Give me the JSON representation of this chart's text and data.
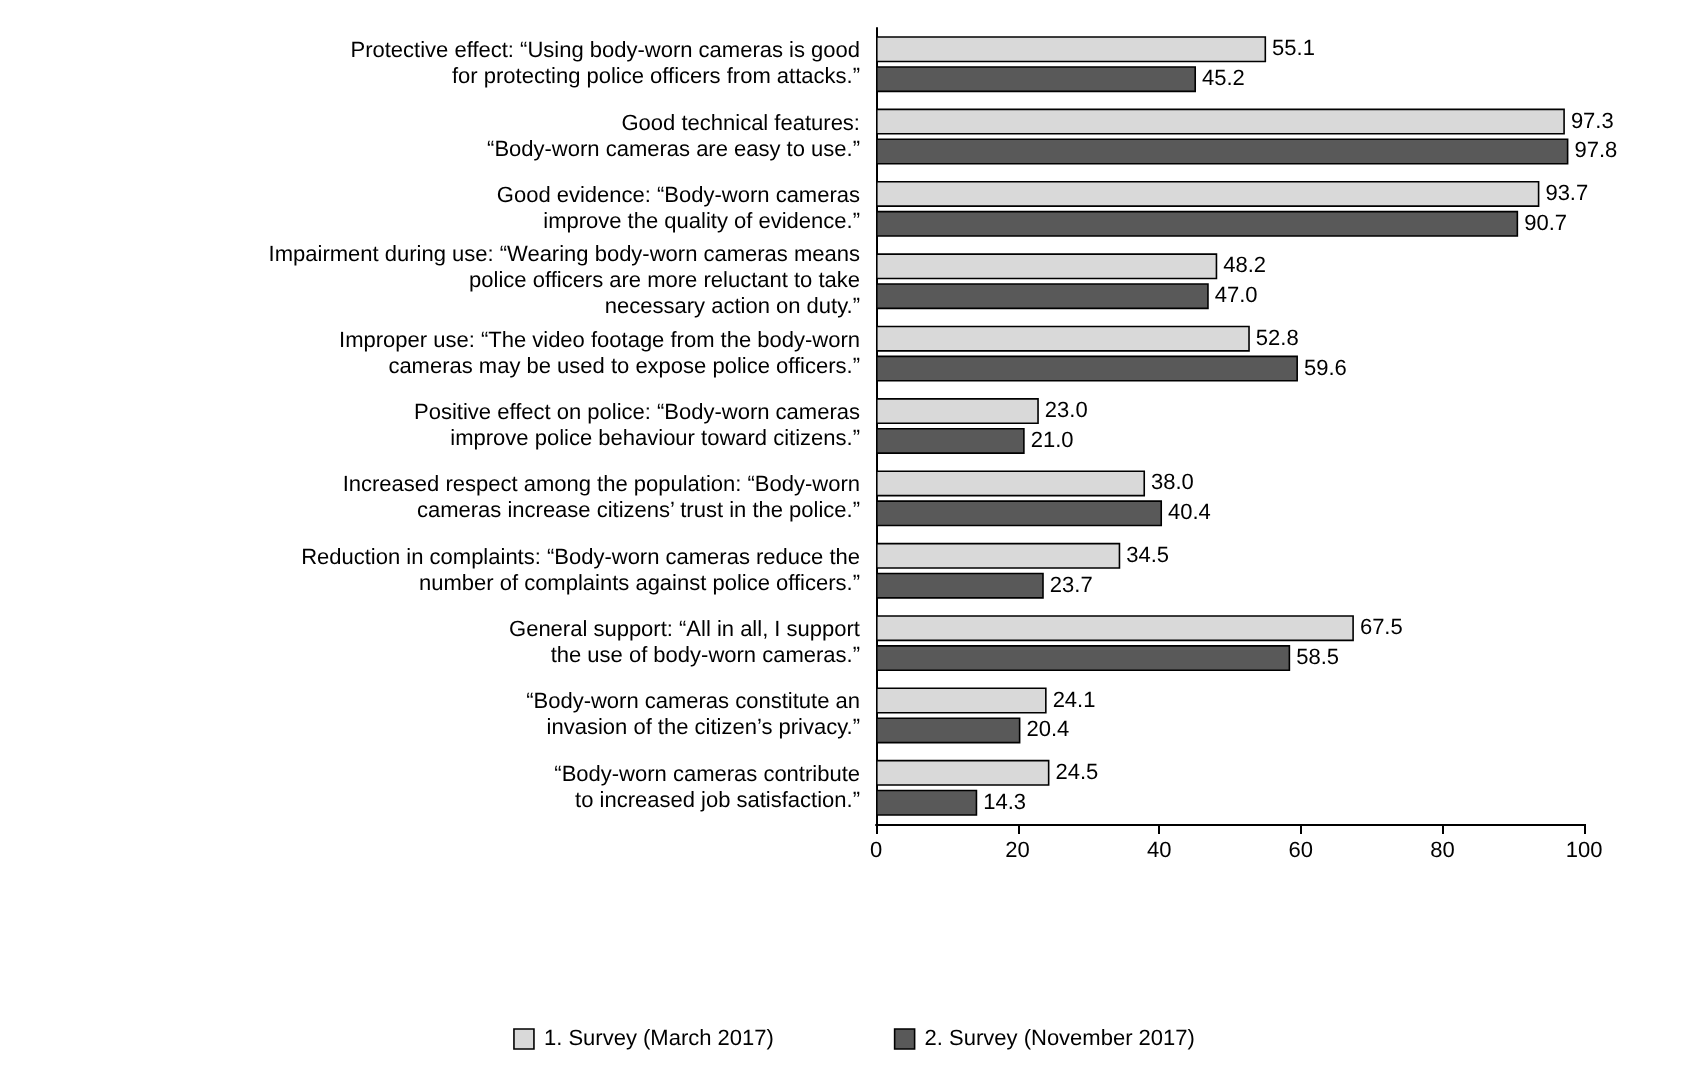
{
  "chart_data": {
    "type": "bar",
    "orientation": "horizontal",
    "categories": [
      "Protective effect: “Using body-worn cameras is good\nfor protecting police officers from attacks.”",
      "Good technical features:\n“Body-worn cameras are easy to use.”",
      "Good evidence: “Body-worn cameras\nimprove the quality of evidence.”",
      "Impairment during use: “Wearing body-worn cameras means\npolice officers are more reluctant to take\nnecessary action on duty.”",
      "Improper use: “The video footage from the body-worn\ncameras may be used to expose police officers.”",
      "Positive effect on police: “Body-worn cameras\nimprove police behaviour toward citizens.”",
      "Increased respect among the population: “Body-worn\ncameras increase citizens’ trust in the police.”",
      "Reduction in complaints: “Body-worn cameras reduce the\nnumber of complaints against police officers.”",
      "General support: “All in all, I support\nthe use of body-worn cameras.”",
      "“Body-worn cameras constitute an\ninvasion of the citizen’s privacy.”",
      "“Body-worn cameras contribute\nto increased job satisfaction.”"
    ],
    "series": [
      {
        "name": "1. Survey (March 2017)",
        "color": "#d9d9d9",
        "values": [
          55.1,
          97.3,
          93.7,
          48.2,
          52.8,
          23.0,
          38.0,
          34.5,
          67.5,
          24.1,
          24.5
        ],
        "value_labels": [
          "55.1",
          "97.3",
          "93.7",
          "48.2",
          "52.8",
          "23.0",
          "38.0",
          "34.5",
          "67.5",
          "24.1",
          "24.5"
        ]
      },
      {
        "name": "2. Survey (November 2017)",
        "color": "#595959",
        "values": [
          45.2,
          97.8,
          90.7,
          47.0,
          59.6,
          21.0,
          40.4,
          23.7,
          58.5,
          20.4,
          14.3
        ],
        "value_labels": [
          "45.2",
          "97.8",
          "90.7",
          "47.0",
          "59.6",
          "21.0",
          "40.4",
          "23.7",
          "58.5",
          "20.4",
          "14.3"
        ]
      }
    ],
    "xlim": [
      0,
      100
    ],
    "xticks": [
      0,
      20,
      40,
      60,
      80,
      100
    ],
    "grid": false,
    "legend": "bottom"
  }
}
